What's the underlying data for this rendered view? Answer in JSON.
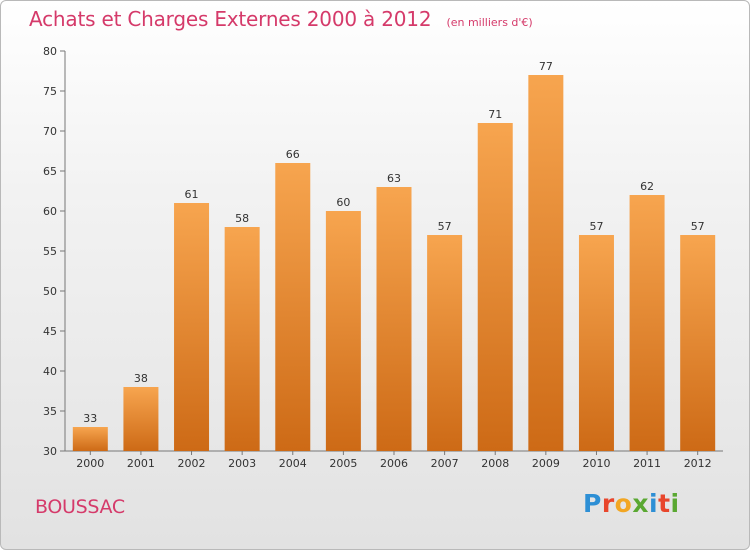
{
  "chart_data": {
    "type": "bar",
    "title": "Achats et Charges Externes 2000 à 2012",
    "unit_label": "(en milliers d'€)",
    "categories": [
      "2000",
      "2001",
      "2002",
      "2003",
      "2004",
      "2005",
      "2006",
      "2007",
      "2008",
      "2009",
      "2010",
      "2011",
      "2012"
    ],
    "values": [
      33,
      38,
      61,
      58,
      66,
      60,
      63,
      57,
      71,
      77,
      57,
      62,
      57
    ],
    "ylim": [
      30,
      80
    ],
    "yticks": [
      30,
      35,
      40,
      45,
      50,
      55,
      60,
      65,
      70,
      75,
      80
    ],
    "grid": false,
    "legend": "none",
    "colors": {
      "bar_light": "#f7a54f",
      "bar_dark": "#cd6a16",
      "accent": "#d53a6a"
    }
  },
  "footer": {
    "commune": "BOUSSAC",
    "logo_letters": [
      "P",
      "r",
      "o",
      "x",
      "i",
      "t",
      "i"
    ],
    "logo_colors": [
      "#2d8fd5",
      "#e8462c",
      "#f2a623",
      "#5aa832",
      "#2d8fd5",
      "#e8462c",
      "#5aa832"
    ]
  }
}
